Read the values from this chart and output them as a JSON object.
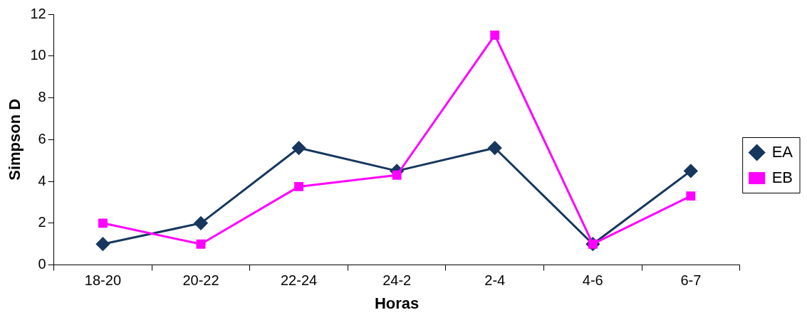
{
  "chart_data": {
    "type": "line",
    "xlabel": "Horas",
    "ylabel": "Simpson D",
    "categories": [
      "18-20",
      "20-22",
      "22-24",
      "24-2",
      "2-4",
      "4-6",
      "6-7"
    ],
    "series": [
      {
        "name": "EA",
        "color": "#17375e",
        "marker": "diamond",
        "values": [
          1,
          2,
          5.6,
          4.5,
          5.6,
          1,
          4.5
        ]
      },
      {
        "name": "EB",
        "color": "#ff00ff",
        "marker": "square",
        "values": [
          2,
          1,
          3.75,
          4.3,
          11,
          1,
          3.3
        ]
      }
    ],
    "ylim": [
      0,
      12
    ],
    "yticks": [
      0,
      2,
      4,
      6,
      8,
      10,
      12
    ],
    "grid": false,
    "legend": "right"
  }
}
